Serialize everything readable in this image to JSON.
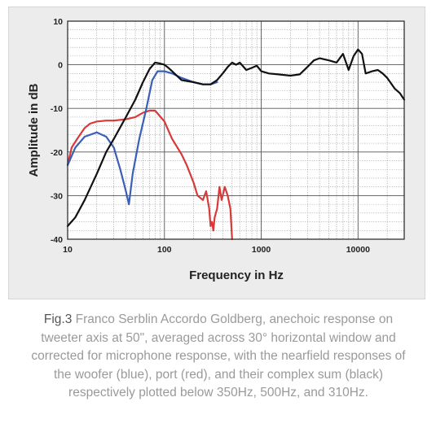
{
  "chart_data": {
    "type": "line",
    "xlabel": "Frequency in Hz",
    "ylabel": "Amplitude in dB",
    "xscale": "log",
    "xlim": [
      10,
      30000
    ],
    "ylim": [
      -40,
      10
    ],
    "x_ticks": [
      10,
      100,
      1000,
      10000
    ],
    "x_tick_labels": [
      "10",
      "100",
      "1000",
      "10000"
    ],
    "y_ticks": [
      10,
      0,
      -10,
      -20,
      -30,
      -40
    ],
    "y_tick_labels": [
      "10",
      "0",
      "-10",
      "-20",
      "-30",
      "-40"
    ],
    "grid": true,
    "legend": "none",
    "series": [
      {
        "color": "#111111",
        "x": [
          10,
          12,
          15,
          20,
          25,
          30,
          40,
          50,
          60,
          70,
          80,
          90,
          100,
          110,
          120,
          150,
          200,
          250,
          300,
          350,
          400,
          450,
          500,
          550,
          600,
          700,
          800,
          900,
          1000,
          1200,
          1500,
          2000,
          2500,
          3000,
          3500,
          4000,
          5000,
          6000,
          7000,
          8000,
          9000,
          10000,
          11000,
          12000,
          14000,
          16000,
          18000,
          20000,
          24000,
          27000,
          30000
        ],
        "y": [
          -37,
          -35,
          -31,
          -25,
          -20,
          -17,
          -12,
          -8,
          -4,
          -1,
          0.5,
          0.3,
          0,
          -0.7,
          -1.5,
          -3.5,
          -4,
          -4.5,
          -4.5,
          -3.5,
          -2,
          -0.5,
          0.5,
          0,
          0.5,
          -1.2,
          -0.7,
          -0.2,
          -1.5,
          -2,
          -2.2,
          -2.5,
          -2.2,
          -0.5,
          1,
          1.5,
          1,
          0.5,
          2.5,
          -1.2,
          2,
          3.5,
          2.5,
          -2,
          -1.5,
          -1.2,
          -2,
          -3,
          -5.5,
          -6.5,
          -8
        ]
      },
      {
        "color": "#3a5fb8",
        "x": [
          10,
          12,
          15,
          20,
          25,
          30,
          35,
          40,
          43,
          47,
          55,
          65,
          75,
          85,
          100,
          120,
          150,
          200,
          250,
          300,
          350
        ],
        "y": [
          -23,
          -19,
          -16.5,
          -15.5,
          -16.5,
          -19,
          -24,
          -29,
          -32,
          -25,
          -17,
          -10,
          -3.5,
          -1.5,
          -1.5,
          -2,
          -3,
          -4,
          -4.5,
          -4.5,
          -4
        ]
      },
      {
        "color": "#d63a3a",
        "x": [
          10,
          11,
          13,
          15,
          17,
          20,
          25,
          30,
          40,
          50,
          60,
          70,
          80,
          100,
          120,
          150,
          170,
          200,
          220,
          250,
          270,
          290,
          300,
          310,
          320,
          330,
          350,
          370,
          390,
          420,
          450,
          480,
          500
        ],
        "y": [
          -23,
          -19,
          -16.5,
          -14.5,
          -13.5,
          -13,
          -12.8,
          -12.8,
          -12.5,
          -12,
          -11,
          -10.5,
          -10.5,
          -13,
          -17,
          -20.5,
          -23,
          -27,
          -30,
          -31,
          -29,
          -33,
          -37,
          -36,
          -38,
          -35,
          -33,
          -28,
          -31,
          -28,
          -30,
          -33,
          -40
        ]
      }
    ]
  },
  "caption": {
    "fig_label": "Fig.3",
    "text": " Franco Serblin Accordo Goldberg, anechoic response on tweeter axis at 50\", averaged across 30° horizontal window and corrected for microphone response, with the nearfield responses of the woofer (blue), port (red), and their complex sum (black) respectively plotted below 350Hz, 500Hz, and 310Hz."
  }
}
